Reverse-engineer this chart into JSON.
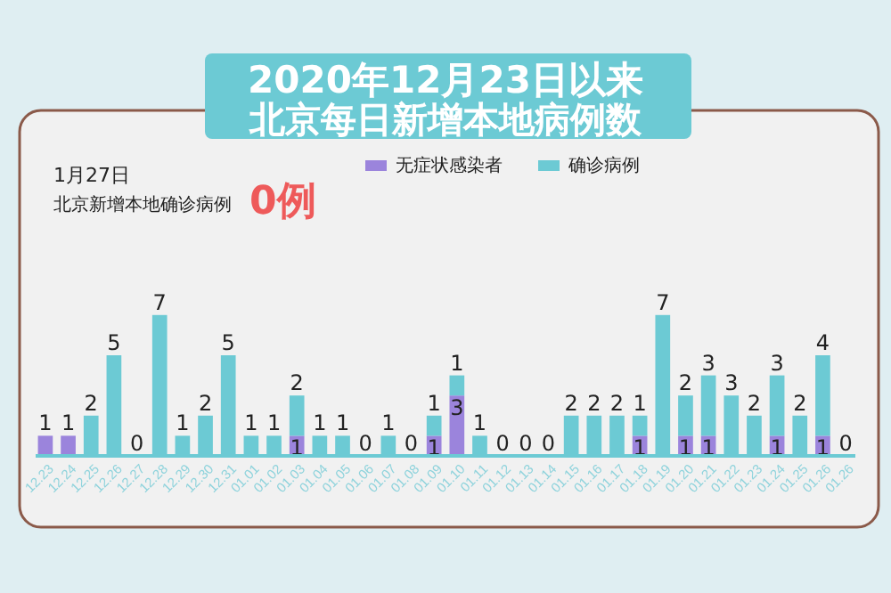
{
  "chart_data": {
    "type": "bar",
    "stacked": true,
    "title": "2020年12月23日以来",
    "subtitle": "北京每日新增本地病例数",
    "annotations": [
      "1月27日",
      "北京新增本地确诊病例",
      "0例"
    ],
    "legend": "top",
    "tick_labels": "x",
    "categories": [
      "12.23",
      "12.24",
      "12.25",
      "12.26",
      "12.27",
      "12.28",
      "12.29",
      "12.30",
      "12.31",
      "01.01",
      "01.02",
      "01.03",
      "01.04",
      "01.05",
      "01.06",
      "01.07",
      "01.08",
      "01.09",
      "01.10",
      "01.11",
      "01.12",
      "01.13",
      "01.14",
      "01.15",
      "01.16",
      "01.17",
      "01.18",
      "01.19",
      "01.20",
      "01.21",
      "01.22",
      "01.23",
      "01.24",
      "01.25",
      "01.26",
      "01.26"
    ],
    "series": [
      {
        "name": "无症状感染者",
        "color": "#9b84dc",
        "values": [
          1,
          1,
          0,
          0,
          0,
          0,
          0,
          0,
          0,
          0,
          0,
          1,
          0,
          0,
          0,
          0,
          0,
          1,
          3,
          0,
          0,
          0,
          0,
          0,
          0,
          0,
          1,
          0,
          1,
          1,
          0,
          0,
          1,
          0,
          1,
          0
        ],
        "value_labels": [
          "1",
          "1",
          null,
          null,
          null,
          null,
          null,
          null,
          null,
          null,
          null,
          "1",
          null,
          null,
          null,
          null,
          null,
          "1",
          "3",
          null,
          null,
          null,
          null,
          null,
          null,
          null,
          "1",
          null,
          "1",
          "1",
          null,
          null,
          "1",
          null,
          "1",
          null
        ]
      },
      {
        "name": "确诊病例",
        "color": "#6ccad4",
        "values": [
          0,
          0,
          2,
          5,
          0,
          7,
          1,
          2,
          5,
          1,
          1,
          2,
          1,
          1,
          0,
          1,
          0,
          1,
          1,
          1,
          0,
          0,
          0,
          2,
          2,
          2,
          1,
          7,
          2,
          3,
          3,
          2,
          3,
          2,
          4,
          0
        ],
        "value_labels": [
          null,
          null,
          "2",
          "5",
          "0",
          "7",
          "1",
          "2",
          "5",
          "1",
          "1",
          "2",
          "1",
          "1",
          "0",
          "1",
          "0",
          "1",
          "1",
          "1",
          "0",
          "0",
          "0",
          "2",
          "2",
          "2",
          "1",
          "7",
          "2",
          "3",
          "3",
          "2",
          "3",
          "2",
          "4",
          "0"
        ]
      }
    ]
  }
}
